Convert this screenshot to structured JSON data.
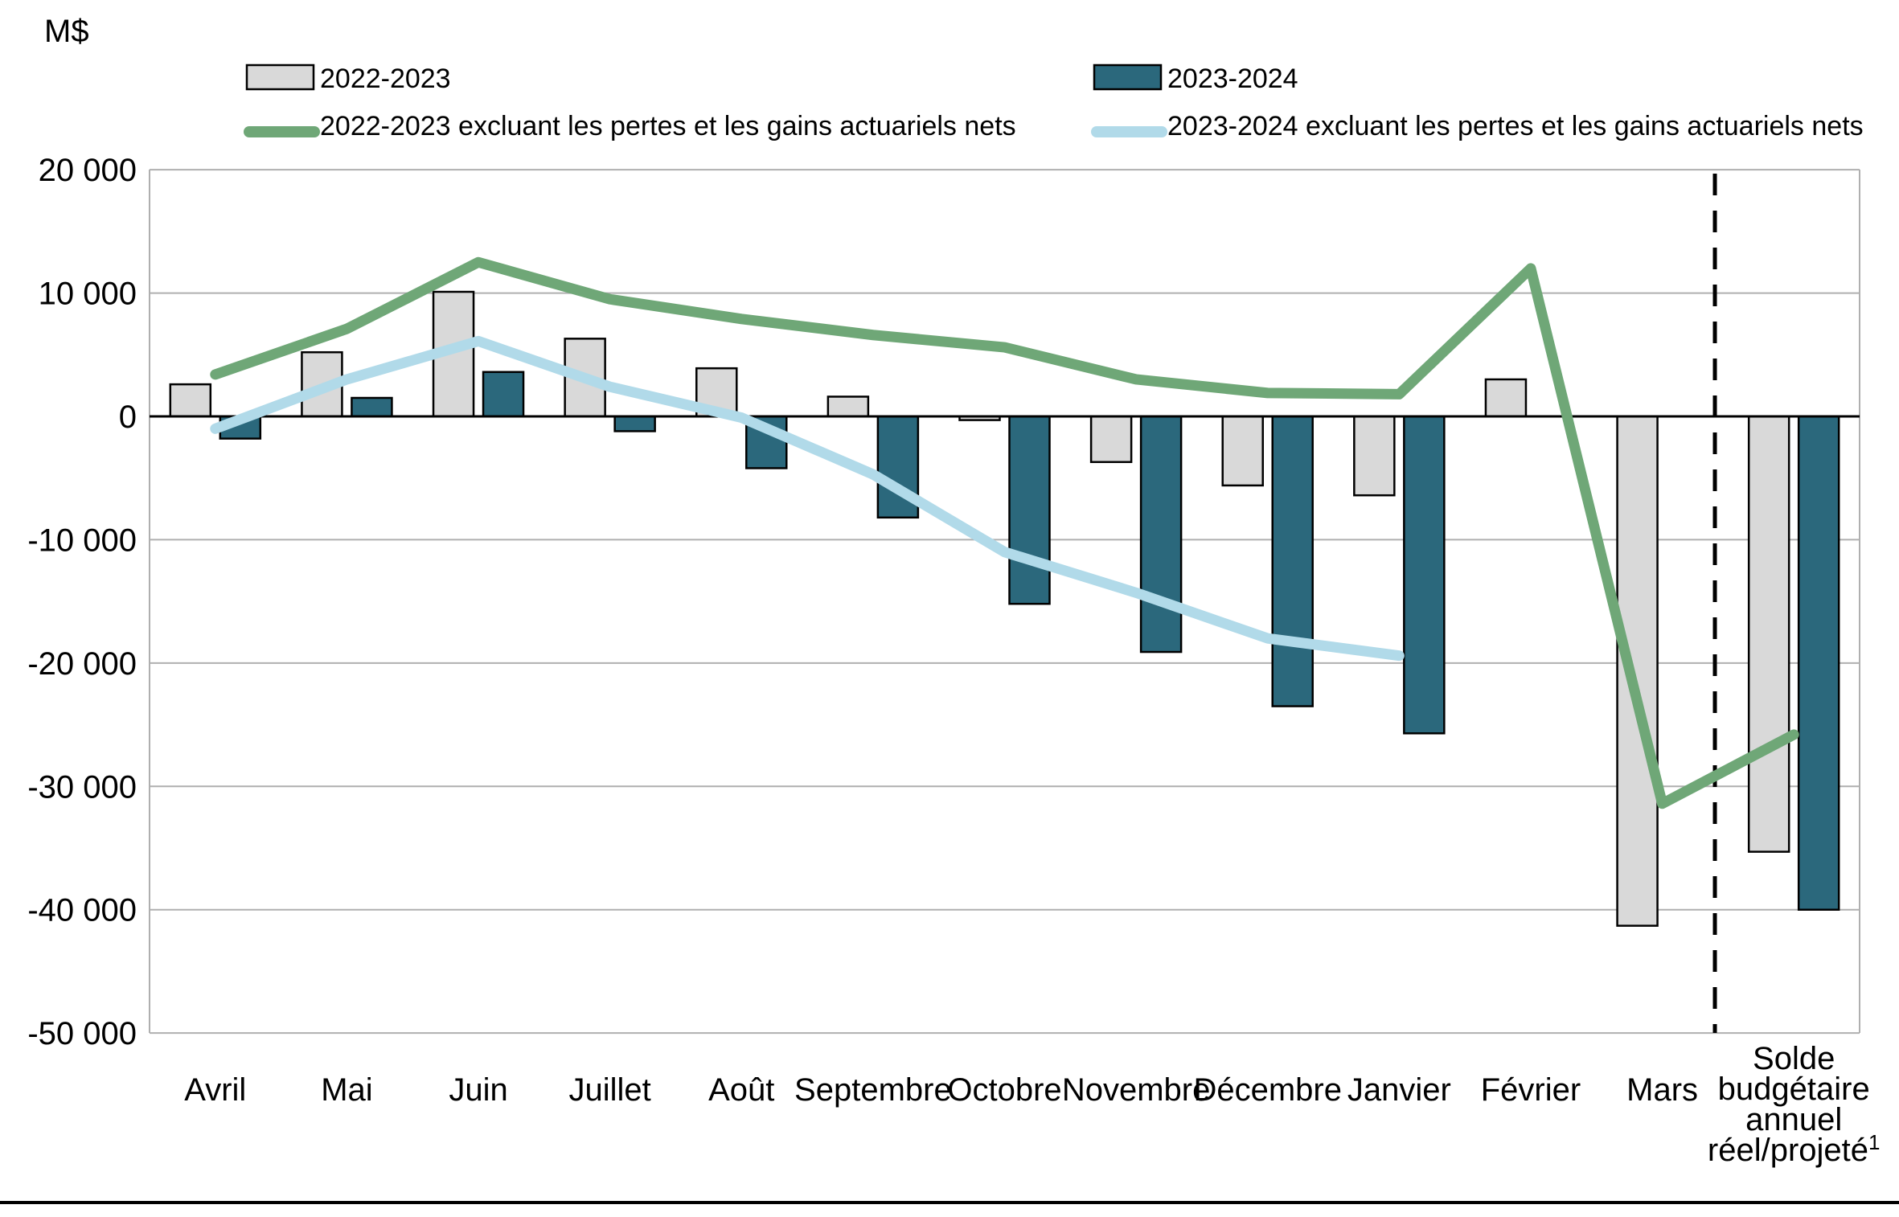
{
  "unit_label": "M$",
  "colors": {
    "bar_2022_2023": "#D9D9D9",
    "bar_2023_2024": "#2B687C",
    "line_2022_2023_excl": "#6FA777",
    "line_2023_2024_excl": "#B1DAE9",
    "bar_border": "#000000",
    "gridline": "#AFAFAF",
    "zero_axis": "#000000",
    "separator": "#000000",
    "bottom_rule": "#000000"
  },
  "legend": [
    {
      "label": "2022-2023",
      "type": "bar",
      "color": "#D9D9D9"
    },
    {
      "label": "2023-2024",
      "type": "bar",
      "color": "#2B687C"
    },
    {
      "label": "2022-2023 excluant les pertes et les gains actuariels nets",
      "type": "line",
      "color": "#6FA777"
    },
    {
      "label": "2023-2024 excluant les pertes et les gains actuariels nets",
      "type": "line",
      "color": "#B1DAE9"
    }
  ],
  "chart_data": {
    "type": "bar",
    "subtype": "grouped bars with line overlays",
    "unit": "M$",
    "grid": "horizontal",
    "legend_position": "top",
    "ylim": [
      -50000,
      20000
    ],
    "ytick_step": 10000,
    "yticks": [
      {
        "value": 20000,
        "label": "20 000"
      },
      {
        "value": 10000,
        "label": "10 000"
      },
      {
        "value": 0,
        "label": "0"
      },
      {
        "value": -10000,
        "label": "-10 000"
      },
      {
        "value": -20000,
        "label": "-20 000"
      },
      {
        "value": -30000,
        "label": "-30 000"
      },
      {
        "value": -40000,
        "label": "-40 000"
      },
      {
        "value": -50000,
        "label": "-50 000"
      }
    ],
    "categories": [
      {
        "label_lines": [
          "Avril"
        ]
      },
      {
        "label_lines": [
          "Mai"
        ]
      },
      {
        "label_lines": [
          "Juin"
        ]
      },
      {
        "label_lines": [
          "Juillet"
        ]
      },
      {
        "label_lines": [
          "Août"
        ]
      },
      {
        "label_lines": [
          "Septembre"
        ]
      },
      {
        "label_lines": [
          "Octobre"
        ]
      },
      {
        "label_lines": [
          "Novembre"
        ]
      },
      {
        "label_lines": [
          "Décembre"
        ]
      },
      {
        "label_lines": [
          "Janvier"
        ]
      },
      {
        "label_lines": [
          "Février"
        ]
      },
      {
        "label_lines": [
          "Mars"
        ]
      },
      {
        "label_lines": [
          "Solde",
          "budgétaire",
          "annuel",
          "réel/projeté"
        ],
        "superscript": "1"
      }
    ],
    "separator": {
      "style": "dashed",
      "after_category_index": 11
    },
    "series": [
      {
        "name": "2022-2023",
        "type": "bar",
        "color": "#D9D9D9",
        "values": [
          2600,
          5200,
          10100,
          6300,
          3900,
          1600,
          -300,
          -3700,
          -5600,
          -6400,
          3000,
          -41300,
          -35300
        ]
      },
      {
        "name": "2023-2024",
        "type": "bar",
        "color": "#2B687C",
        "values": [
          -1800,
          1500,
          3600,
          -1200,
          -4200,
          -8200,
          -15200,
          -19100,
          -23500,
          -25700,
          null,
          null,
          -40000
        ]
      },
      {
        "name": "2022-2023 excluant les pertes et les gains actuariels nets",
        "type": "line",
        "color": "#6FA777",
        "values": [
          3400,
          7100,
          12500,
          9500,
          7900,
          6600,
          5600,
          3000,
          1900,
          1800,
          12000,
          -31400,
          -25800
        ]
      },
      {
        "name": "2023-2024 excluant les pertes et les gains actuariels nets",
        "type": "line",
        "color": "#B1DAE9",
        "values": [
          -1000,
          3000,
          6100,
          2400,
          -100,
          -4700,
          -11000,
          -14300,
          -18000,
          -19400,
          null,
          null,
          null
        ]
      }
    ]
  }
}
